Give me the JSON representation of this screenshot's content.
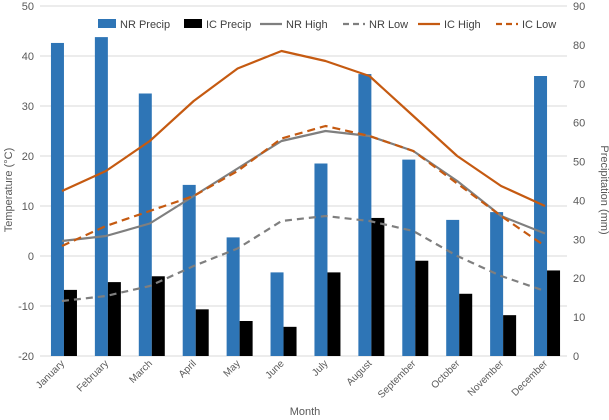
{
  "chart_data": {
    "type": "combo",
    "categories": [
      "January",
      "February",
      "March",
      "April",
      "May",
      "June",
      "July",
      "August",
      "September",
      "October",
      "November",
      "December"
    ],
    "xlabel": "Month",
    "ylabel_left": "Temperature (°C)",
    "ylabel_right": "Precipitation (mm)",
    "ylim_left": [
      -20,
      50
    ],
    "ylim_right": [
      0,
      90
    ],
    "yticks_left": [
      -20,
      -10,
      0,
      10,
      20,
      30,
      40,
      50
    ],
    "yticks_right": [
      0,
      10,
      20,
      30,
      40,
      50,
      60,
      70,
      80,
      90
    ],
    "bars": [
      {
        "name": "NR Precip",
        "color": "#2E75B6",
        "axis": "right",
        "values": [
          80.5,
          82,
          67.5,
          44,
          30.5,
          21.5,
          49.5,
          72.5,
          50.5,
          35,
          37,
          72
        ]
      },
      {
        "name": "IC Precip",
        "color": "#000000",
        "axis": "right",
        "values": [
          17,
          19,
          20.5,
          12,
          9,
          7.5,
          21.5,
          35.5,
          24.5,
          16,
          10.5,
          22
        ]
      }
    ],
    "lines": [
      {
        "name": "NR High",
        "color": "#7F7F7F",
        "dash": "",
        "axis": "left",
        "values": [
          3,
          4,
          6.5,
          12,
          17.5,
          23,
          25,
          24,
          21,
          15,
          8,
          4.5
        ]
      },
      {
        "name": "NR Low",
        "color": "#7F7F7F",
        "dash": "7,5",
        "axis": "left",
        "values": [
          -9,
          -8,
          -6,
          -2,
          1.5,
          7,
          8,
          7,
          5,
          0,
          -4,
          -7
        ]
      },
      {
        "name": "IC High",
        "color": "#C55A11",
        "dash": "",
        "axis": "left",
        "values": [
          13,
          17,
          23,
          31,
          37.5,
          41,
          39,
          36,
          28,
          20,
          14,
          10
        ]
      },
      {
        "name": "IC Low",
        "color": "#C55A11",
        "dash": "8,5",
        "axis": "left",
        "values": [
          2,
          6,
          9,
          12,
          17,
          23.5,
          26,
          24,
          21,
          14.5,
          8,
          2
        ]
      }
    ],
    "legend_position": "top"
  }
}
